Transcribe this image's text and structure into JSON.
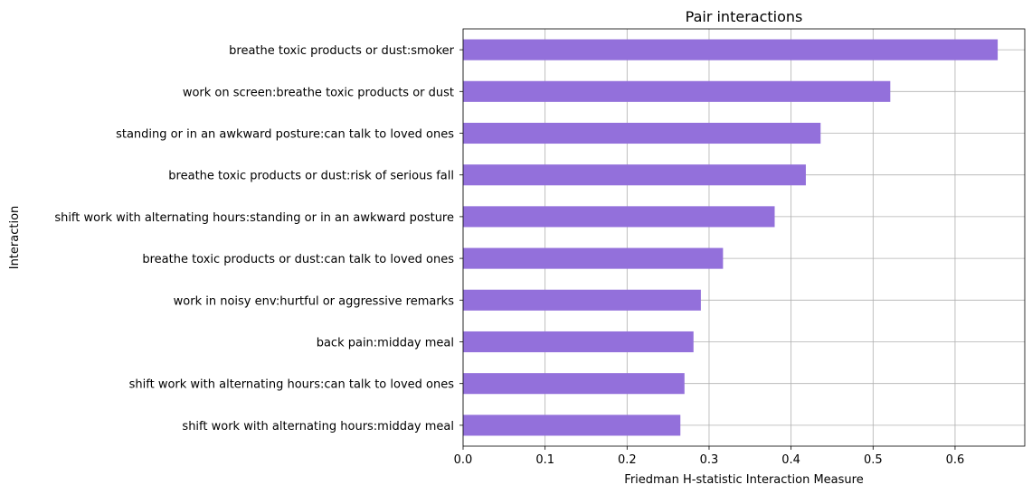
{
  "chart_data": {
    "type": "bar",
    "orientation": "horizontal",
    "title": "Pair interactions",
    "xlabel": "Friedman H-statistic Interaction Measure",
    "ylabel": "Interaction",
    "xlim": [
      0,
      0.685
    ],
    "xticks": [
      0.0,
      0.1,
      0.2,
      0.3,
      0.4,
      0.5,
      0.6
    ],
    "xtick_labels": [
      "0.0",
      "0.1",
      "0.2",
      "0.3",
      "0.4",
      "0.5",
      "0.6"
    ],
    "grid": true,
    "bar_color": "#9370db",
    "categories": [
      "breathe toxic products or dust:smoker",
      "work on screen:breathe toxic products or dust",
      "standing or in an awkward posture:can talk to loved ones",
      "breathe toxic products or dust:risk of serious fall",
      "shift work with alternating hours:standing or in an awkward posture",
      "breathe toxic products or dust:can talk to loved ones",
      "work in noisy env:hurtful or aggressive remarks",
      "back pain:midday meal",
      "shift work with alternating hours:can talk to loved ones",
      "shift work with alternating hours:midday meal"
    ],
    "values": [
      0.652,
      0.521,
      0.436,
      0.418,
      0.38,
      0.317,
      0.29,
      0.281,
      0.27,
      0.265
    ]
  }
}
